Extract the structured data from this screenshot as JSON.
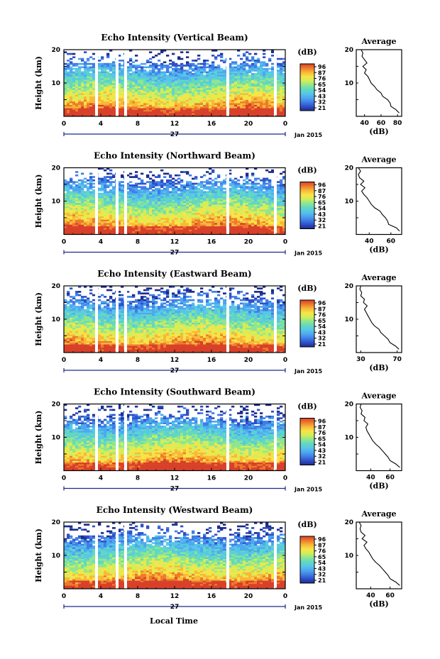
{
  "colors": {
    "scale": [
      "#1c2c8c",
      "#2e50c8",
      "#3f7ee6",
      "#4ea8ee",
      "#57c6e8",
      "#62d8c0",
      "#8ee690",
      "#d2ee58",
      "#f8e448",
      "#f8b838",
      "#ee7a2c",
      "#d8402a"
    ]
  },
  "common": {
    "xticks": [
      "0",
      "4",
      "8",
      "12",
      "16",
      "20",
      "0"
    ],
    "yticks_main": [
      "10",
      "20"
    ],
    "ylabel": "Height (km)",
    "date_center": "27",
    "date_right": "Jan 2015",
    "cbar_unit": "(dB)",
    "avg_title": "Average",
    "avg_xlabel": "(dB)",
    "xlabel": "Local Time"
  },
  "chart_data": [
    {
      "type": "heatmap",
      "title": "Echo Intensity (Vertical Beam)",
      "cbar_ticks": [
        "96",
        "87",
        "76",
        "65",
        "54",
        "43",
        "32",
        "21"
      ],
      "avg_xticks": [
        "40",
        "60",
        "80"
      ],
      "avg_xlim": [
        30,
        85
      ],
      "avg_profile": [
        {
          "h": 1.0,
          "db": 82
        },
        {
          "h": 2.0,
          "db": 78
        },
        {
          "h": 3.0,
          "db": 72
        },
        {
          "h": 4.0,
          "db": 71
        },
        {
          "h": 5.0,
          "db": 68
        },
        {
          "h": 6.0,
          "db": 62
        },
        {
          "h": 7.0,
          "db": 60
        },
        {
          "h": 8.0,
          "db": 55
        },
        {
          "h": 9.0,
          "db": 52
        },
        {
          "h": 10.0,
          "db": 48
        },
        {
          "h": 11.0,
          "db": 46
        },
        {
          "h": 12.0,
          "db": 44
        },
        {
          "h": 13.0,
          "db": 40
        },
        {
          "h": 14.0,
          "db": 42
        },
        {
          "h": 15.0,
          "db": 38
        },
        {
          "h": 16.0,
          "db": 43
        },
        {
          "h": 17.0,
          "db": 40
        },
        {
          "h": 18.0,
          "db": 37
        },
        {
          "h": 19.0,
          "db": 38
        },
        {
          "h": 20.0,
          "db": 36
        }
      ]
    },
    {
      "type": "heatmap",
      "title": "Echo Intensity (Northward Beam)",
      "cbar_ticks": [
        "96",
        "87",
        "76",
        "65",
        "54",
        "43",
        "32",
        "21"
      ],
      "avg_xticks": [
        "40",
        "60"
      ],
      "avg_xlim": [
        28,
        70
      ],
      "avg_profile": [
        {
          "h": 1.0,
          "db": 68
        },
        {
          "h": 2.0,
          "db": 65
        },
        {
          "h": 3.0,
          "db": 58
        },
        {
          "h": 4.0,
          "db": 57
        },
        {
          "h": 5.0,
          "db": 55
        },
        {
          "h": 6.0,
          "db": 52
        },
        {
          "h": 7.0,
          "db": 50
        },
        {
          "h": 8.0,
          "db": 45
        },
        {
          "h": 9.0,
          "db": 42
        },
        {
          "h": 10.0,
          "db": 40
        },
        {
          "h": 11.0,
          "db": 38
        },
        {
          "h": 12.0,
          "db": 35
        },
        {
          "h": 13.0,
          "db": 33
        },
        {
          "h": 14.0,
          "db": 36
        },
        {
          "h": 15.0,
          "db": 32
        },
        {
          "h": 16.0,
          "db": 35
        },
        {
          "h": 17.0,
          "db": 31
        },
        {
          "h": 18.0,
          "db": 30
        },
        {
          "h": 19.0,
          "db": 32
        },
        {
          "h": 20.0,
          "db": 30
        }
      ]
    },
    {
      "type": "heatmap",
      "title": "Echo Intensity (Eastward Beam)",
      "cbar_ticks": [
        "96",
        "87",
        "76",
        "65",
        "54",
        "43",
        "32",
        "21"
      ],
      "avg_xticks": [
        "30",
        "70"
      ],
      "avg_xlim": [
        25,
        75
      ],
      "avg_profile": [
        {
          "h": 1.0,
          "db": 72
        },
        {
          "h": 2.0,
          "db": 68
        },
        {
          "h": 3.0,
          "db": 62
        },
        {
          "h": 4.0,
          "db": 60
        },
        {
          "h": 5.0,
          "db": 56
        },
        {
          "h": 6.0,
          "db": 52
        },
        {
          "h": 7.0,
          "db": 50
        },
        {
          "h": 8.0,
          "db": 45
        },
        {
          "h": 9.0,
          "db": 42
        },
        {
          "h": 10.0,
          "db": 40
        },
        {
          "h": 11.0,
          "db": 38
        },
        {
          "h": 12.0,
          "db": 36
        },
        {
          "h": 13.0,
          "db": 34
        },
        {
          "h": 14.0,
          "db": 37
        },
        {
          "h": 15.0,
          "db": 33
        },
        {
          "h": 16.0,
          "db": 34
        },
        {
          "h": 17.0,
          "db": 30
        },
        {
          "h": 18.0,
          "db": 31
        },
        {
          "h": 19.0,
          "db": 29
        },
        {
          "h": 20.0,
          "db": 30
        }
      ]
    },
    {
      "type": "heatmap",
      "title": "Echo Intensity (Southward Beam)",
      "cbar_ticks": [
        "96",
        "87",
        "76",
        "65",
        "54",
        "43",
        "32",
        "21"
      ],
      "avg_xticks": [
        "40",
        "60"
      ],
      "avg_xlim": [
        25,
        72
      ],
      "avg_profile": [
        {
          "h": 1.0,
          "db": 70
        },
        {
          "h": 2.0,
          "db": 66
        },
        {
          "h": 3.0,
          "db": 60
        },
        {
          "h": 4.0,
          "db": 58
        },
        {
          "h": 5.0,
          "db": 55
        },
        {
          "h": 6.0,
          "db": 52
        },
        {
          "h": 7.0,
          "db": 49
        },
        {
          "h": 8.0,
          "db": 45
        },
        {
          "h": 9.0,
          "db": 42
        },
        {
          "h": 10.0,
          "db": 40
        },
        {
          "h": 11.0,
          "db": 38
        },
        {
          "h": 12.0,
          "db": 36
        },
        {
          "h": 13.0,
          "db": 35
        },
        {
          "h": 14.0,
          "db": 37
        },
        {
          "h": 15.0,
          "db": 33
        },
        {
          "h": 16.0,
          "db": 34
        },
        {
          "h": 17.0,
          "db": 30
        },
        {
          "h": 18.0,
          "db": 31
        },
        {
          "h": 19.0,
          "db": 29
        },
        {
          "h": 20.0,
          "db": 30
        }
      ]
    },
    {
      "type": "heatmap",
      "title": "Echo Intensity (Westward Beam)",
      "cbar_ticks": [
        "96",
        "87",
        "76",
        "65",
        "54",
        "43",
        "32",
        "21"
      ],
      "avg_xticks": [
        "40",
        "60"
      ],
      "avg_xlim": [
        25,
        72
      ],
      "avg_profile": [
        {
          "h": 1.0,
          "db": 70
        },
        {
          "h": 2.0,
          "db": 66
        },
        {
          "h": 3.0,
          "db": 60
        },
        {
          "h": 4.0,
          "db": 58
        },
        {
          "h": 5.0,
          "db": 55
        },
        {
          "h": 6.0,
          "db": 52
        },
        {
          "h": 7.0,
          "db": 49
        },
        {
          "h": 8.0,
          "db": 45
        },
        {
          "h": 9.0,
          "db": 42
        },
        {
          "h": 10.0,
          "db": 40
        },
        {
          "h": 11.0,
          "db": 38
        },
        {
          "h": 12.0,
          "db": 35
        },
        {
          "h": 13.0,
          "db": 33
        },
        {
          "h": 14.0,
          "db": 36
        },
        {
          "h": 15.0,
          "db": 31
        },
        {
          "h": 16.0,
          "db": 34
        },
        {
          "h": 17.0,
          "db": 30
        },
        {
          "h": 18.0,
          "db": 29
        },
        {
          "h": 19.0,
          "db": 30
        },
        {
          "h": 20.0,
          "db": 28
        }
      ]
    }
  ]
}
